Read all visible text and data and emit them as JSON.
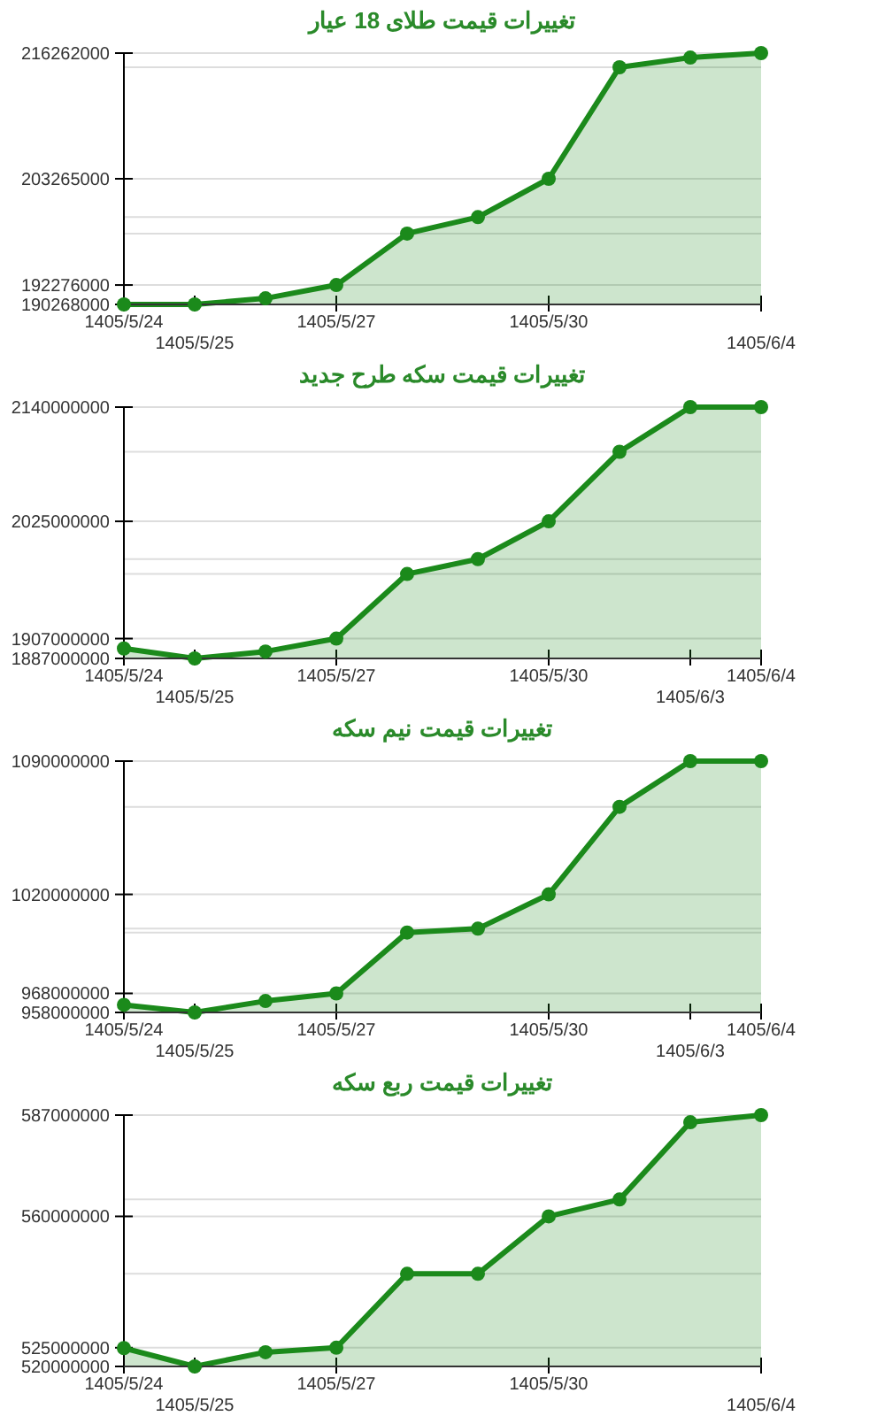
{
  "chart_data": [
    {
      "type": "area",
      "title": "تغییرات قیمت طلای 18 عیار",
      "categories": [
        "1405/5/24",
        "1405/5/25",
        null,
        "1405/5/27",
        null,
        null,
        "1405/5/30",
        null,
        null,
        "1405/6/4"
      ],
      "color": "#1b8a1b",
      "marker": "circle",
      "grid": "y",
      "values": [
        190268000,
        190268000,
        190900000,
        192276000,
        197600000,
        199300000,
        203265000,
        214800000,
        215800000,
        216262000
      ],
      "ylim": [
        190268000,
        216262000
      ],
      "yticks": [
        190268000,
        192276000,
        {
          "value": 197600000,
          "label": null
        },
        {
          "value": 199300000,
          "label": null
        },
        203265000,
        {
          "value": 214800000,
          "label": null
        },
        216262000
      ]
    },
    {
      "type": "area",
      "title": "تغییرات قیمت سکه طرح جدید",
      "categories": [
        "1405/5/24",
        "1405/5/25",
        null,
        "1405/5/27",
        null,
        null,
        "1405/5/30",
        null,
        "1405/6/3",
        "1405/6/4"
      ],
      "color": "#1b8a1b",
      "marker": "circle",
      "grid": "y",
      "values": [
        1897000000,
        1887000000,
        1894000000,
        1907000000,
        1972000000,
        1987000000,
        2025000000,
        2095000000,
        2140000000,
        2140000000
      ],
      "ylim": [
        1887000000,
        2140000000
      ],
      "yticks": [
        1887000000,
        1907000000,
        {
          "value": 1972000000,
          "label": null
        },
        {
          "value": 1987000000,
          "label": null
        },
        2025000000,
        {
          "value": 2095000000,
          "label": null
        },
        2140000000
      ]
    },
    {
      "type": "area",
      "title": "تغییرات قیمت نیم سکه",
      "categories": [
        "1405/5/24",
        "1405/5/25",
        null,
        "1405/5/27",
        null,
        null,
        "1405/5/30",
        null,
        "1405/6/3",
        "1405/6/4"
      ],
      "color": "#1b8a1b",
      "marker": "circle",
      "grid": "y",
      "values": [
        962000000,
        958000000,
        964000000,
        968000000,
        1000000000,
        1002000000,
        1020000000,
        1066000000,
        1090000000,
        1090000000
      ],
      "ylim": [
        958000000,
        1090000000
      ],
      "yticks": [
        958000000,
        968000000,
        {
          "value": 1000000000,
          "label": null
        },
        {
          "value": 1002000000,
          "label": null
        },
        1020000000,
        {
          "value": 1066000000,
          "label": null
        },
        1090000000
      ]
    },
    {
      "type": "area",
      "title": "تغییرات قیمت ربع سکه",
      "categories": [
        "1405/5/24",
        "1405/5/25",
        null,
        "1405/5/27",
        null,
        null,
        "1405/5/30",
        null,
        null,
        "1405/6/4"
      ],
      "color": "#1b8a1b",
      "marker": "circle",
      "grid": "y",
      "values": [
        524900000,
        520000000,
        523800000,
        525000000,
        544700000,
        544700000,
        560000000,
        564500000,
        585100000,
        587000000
      ],
      "ylim": [
        520000000,
        587000000
      ],
      "yticks": [
        520000000,
        525000000,
        {
          "value": 544700000,
          "label": null
        },
        {
          "value": 564500000,
          "label": null
        },
        560000000,
        587000000
      ]
    }
  ]
}
